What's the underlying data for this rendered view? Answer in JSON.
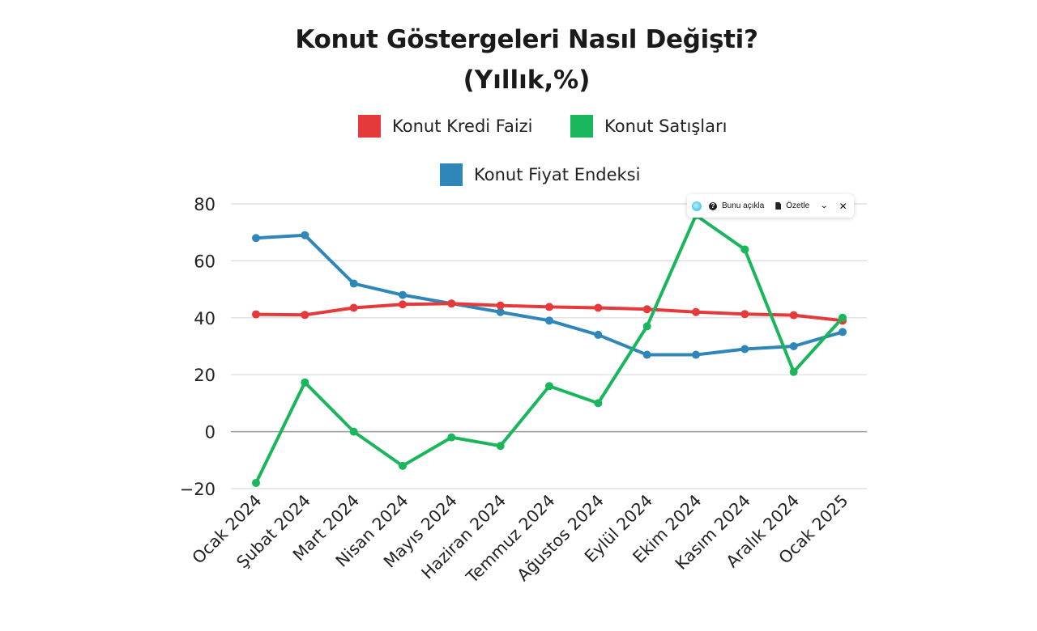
{
  "chart_data": {
    "type": "line",
    "title": "Konut Göstergeleri Nasıl Değişti?",
    "subtitle": "(Yıllık,%)",
    "xlabel": "",
    "ylabel": "",
    "categories": [
      "Ocak 2024",
      "Şubat 2024",
      "Mart 2024",
      "Nisan 2024",
      "Mayıs 2024",
      "Haziran 2024",
      "Temmuz 2024",
      "Ağustos 2024",
      "Eylül 2024",
      "Ekim 2024",
      "Kasım 2024",
      "Aralık 2024",
      "Ocak 2025"
    ],
    "ylim": [
      -20,
      80
    ],
    "yticks": [
      -20,
      0,
      20,
      40,
      60,
      80
    ],
    "grid": true,
    "legend_position": "top",
    "series": [
      {
        "name": "Konut Kredi Faizi",
        "color": "#e5393a",
        "values": [
          41.2,
          41.0,
          43.5,
          44.7,
          45.0,
          44.3,
          43.8,
          43.5,
          43.0,
          42.0,
          41.3,
          40.9,
          39.0
        ]
      },
      {
        "name": "Konut Satışları",
        "color": "#1ab65c",
        "values": [
          -18.0,
          17.3,
          0.0,
          -12.0,
          -2.0,
          -5.0,
          16.0,
          10.0,
          37.0,
          76.0,
          64.0,
          21.0,
          40.0
        ]
      },
      {
        "name": "Konut Fiyat Endeksi",
        "color": "#2f86b8",
        "values": [
          68.0,
          69.0,
          52.0,
          48.0,
          45.0,
          42.0,
          39.0,
          34.0,
          27.0,
          27.0,
          29.0,
          30.0,
          35.0
        ]
      }
    ]
  },
  "popup": {
    "explain_label": "Bunu açıkla",
    "summarize_label": "Özetle",
    "chevron_icon": "chevron-down-icon",
    "close_icon": "close-icon",
    "logo_icon": "assistant-logo-icon"
  }
}
